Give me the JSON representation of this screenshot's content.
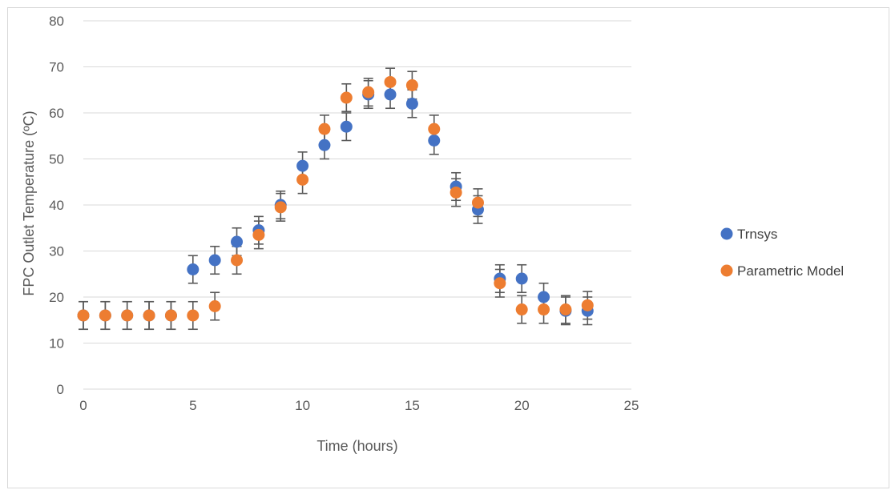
{
  "chart_data": {
    "type": "scatter",
    "title": "",
    "xlabel": "Time (hours)",
    "ylabel": "FPC Outlet Temperature (ºC)",
    "xlim": [
      0,
      25
    ],
    "ylim": [
      0,
      80
    ],
    "xticks": [
      "0",
      "5",
      "10",
      "15",
      "20",
      "25"
    ],
    "yticks": [
      "0",
      "10",
      "20",
      "30",
      "40",
      "50",
      "60",
      "70",
      "80"
    ],
    "grid": "horizontal",
    "legend_position": "right",
    "error_bar_magnitude": 3,
    "series": [
      {
        "name": "Trnsys",
        "color": "#4472c4",
        "x": [
          0,
          1,
          2,
          3,
          4,
          5,
          6,
          7,
          8,
          9,
          10,
          11,
          12,
          13,
          14,
          15,
          16,
          17,
          18,
          19,
          20,
          21,
          22,
          23
        ],
        "y": [
          16,
          16,
          16,
          16,
          16,
          26,
          28,
          32,
          34.5,
          40,
          48.5,
          53,
          57,
          64,
          64,
          62,
          54,
          44,
          39,
          24,
          24,
          20,
          17,
          17
        ]
      },
      {
        "name": "Parametric Model",
        "color": "#ed7d31",
        "x": [
          0,
          1,
          2,
          3,
          4,
          5,
          6,
          7,
          8,
          9,
          10,
          11,
          12,
          13,
          14,
          15,
          16,
          17,
          18,
          19,
          20,
          21,
          22,
          23
        ],
        "y": [
          16,
          16,
          16,
          16,
          16,
          16,
          18,
          28,
          33.5,
          39.5,
          45.5,
          56.5,
          63.3,
          64.5,
          66.7,
          66,
          56.5,
          42.7,
          40.5,
          23,
          17.3,
          17.3,
          17.3,
          18.2
        ]
      }
    ],
    "error_bar_color": "#595959"
  }
}
